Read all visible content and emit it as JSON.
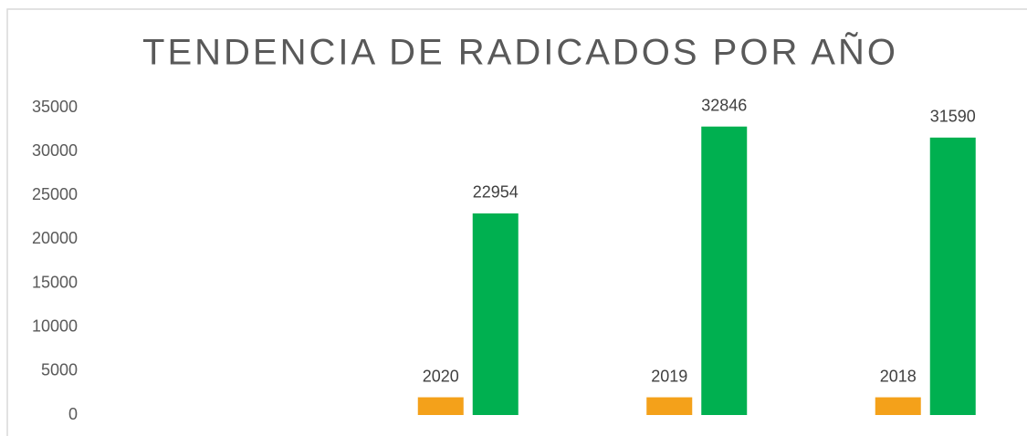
{
  "chart_data": {
    "type": "bar",
    "title": "TENDENCIA DE RADICADOS POR AÑO",
    "categories": [
      null,
      null,
      null,
      null
    ],
    "series": [
      {
        "color": "#f4a11a",
        "values": [
          null,
          2020,
          2019,
          2018
        ]
      },
      {
        "color": "#00b050",
        "values": [
          null,
          22954,
          32846,
          31590
        ]
      }
    ],
    "ylim": [
      0,
      35000
    ],
    "yticks": [
      0,
      5000,
      10000,
      15000,
      20000,
      25000,
      30000,
      35000
    ],
    "grid": false
  }
}
